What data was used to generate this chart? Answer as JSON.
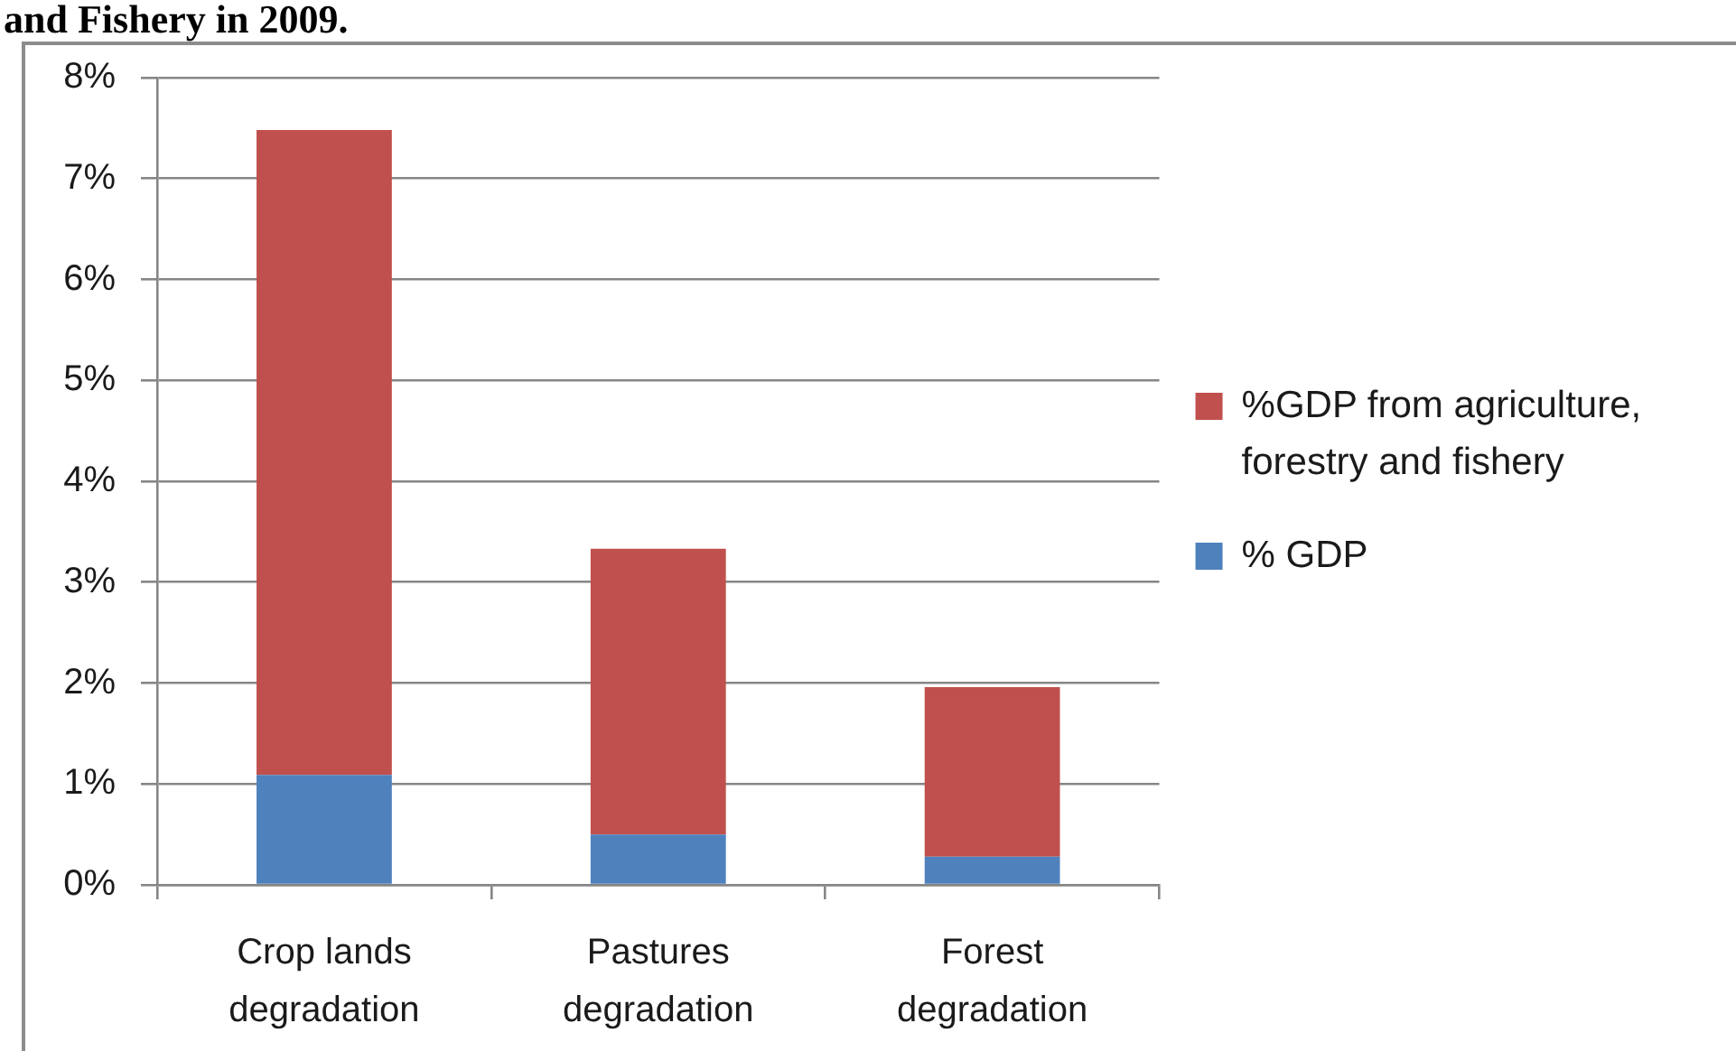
{
  "chart_data": {
    "type": "bar",
    "title": "and Fishery in 2009.",
    "categories": [
      "Crop lands degradation",
      "Pastures degradation",
      "Forest degradation"
    ],
    "stacked": true,
    "series": [
      {
        "name": "% GDP",
        "color": "#4f81bd",
        "values": [
          1.09,
          0.5,
          0.28
        ]
      },
      {
        "name": "%GDP from agriculture, forestry and fishery",
        "color": "#c0504d",
        "values": [
          6.39,
          2.83,
          1.68
        ]
      }
    ],
    "ylim": [
      0,
      8
    ],
    "yticks": [
      {
        "value": 0,
        "label": "0%"
      },
      {
        "value": 1,
        "label": "1%"
      },
      {
        "value": 2,
        "label": "2%"
      },
      {
        "value": 3,
        "label": "3%"
      },
      {
        "value": 4,
        "label": "4%"
      },
      {
        "value": 5,
        "label": "5%"
      },
      {
        "value": 6,
        "label": "6%"
      },
      {
        "value": 7,
        "label": "7%"
      },
      {
        "value": 8,
        "label": "8%"
      }
    ],
    "grid": "y",
    "legend": "right"
  }
}
